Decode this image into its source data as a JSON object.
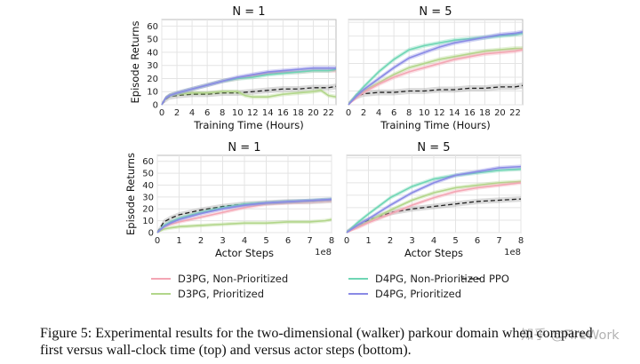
{
  "figure": {
    "caption_line1": "Figure 5: Experimental results for the two-dimensional (walker) parkour domain when compared",
    "caption_line2": "first versus wall-clock time (top) and versus actor steps (bottom).",
    "watermark": "知乎 @FireWork",
    "ylabel": "Episode Returns",
    "legend": [
      {
        "name": "D3PG, Non-Prioritized",
        "color": "#f4a6b4",
        "style": "solid"
      },
      {
        "name": "D4PG, Non-Prioritized",
        "color": "#6fd6b4",
        "style": "solid"
      },
      {
        "name": "PPO",
        "color": "#222222",
        "style": "dashed"
      },
      {
        "name": "D3PG, Prioritized",
        "color": "#b2d68a",
        "style": "solid"
      },
      {
        "name": "D4PG, Prioritized",
        "color": "#8a8ae6",
        "style": "solid"
      }
    ]
  },
  "chart_data": [
    {
      "type": "line",
      "title": "N = 1",
      "xlabel": "Training Time (Hours)",
      "ylabel": "Episode Returns",
      "xlim": [
        0,
        23
      ],
      "ylim": [
        0,
        65
      ],
      "xticks": [
        0,
        2,
        4,
        6,
        8,
        10,
        12,
        14,
        16,
        18,
        20,
        22
      ],
      "yticks": [
        0,
        10,
        20,
        30,
        40,
        50,
        60
      ],
      "x_exponent": "",
      "series": [
        {
          "name": "D3PG, Non-Prioritized",
          "x": [
            0,
            0.5,
            1,
            2,
            4,
            6,
            8,
            10,
            12,
            14,
            16,
            18,
            20,
            22,
            23
          ],
          "y": [
            0,
            5,
            7,
            9,
            12,
            15,
            18,
            20,
            22,
            24,
            25,
            25,
            26,
            26,
            26
          ]
        },
        {
          "name": "D3PG, Prioritized",
          "x": [
            0,
            0.5,
            1,
            2,
            4,
            6,
            8,
            10,
            11,
            12,
            14,
            16,
            18,
            20,
            21,
            22,
            23
          ],
          "y": [
            0,
            5,
            7,
            8,
            9,
            9,
            10,
            10,
            7,
            6,
            6,
            8,
            9,
            10,
            11,
            7,
            6
          ]
        },
        {
          "name": "D4PG, Non-Prioritized",
          "x": [
            0,
            0.5,
            1,
            2,
            4,
            6,
            8,
            10,
            12,
            14,
            16,
            18,
            20,
            22,
            23
          ],
          "y": [
            0,
            5,
            7,
            9,
            12,
            15,
            18,
            20,
            21,
            23,
            24,
            25,
            26,
            26,
            27
          ]
        },
        {
          "name": "D4PG, Prioritized",
          "x": [
            0,
            0.5,
            1,
            2,
            4,
            6,
            8,
            10,
            12,
            14,
            16,
            18,
            20,
            22,
            23
          ],
          "y": [
            0,
            5,
            7,
            9,
            12,
            15,
            18,
            21,
            23,
            25,
            26,
            27,
            28,
            28,
            28
          ]
        },
        {
          "name": "PPO",
          "x": [
            0,
            0.5,
            1,
            2,
            4,
            6,
            8,
            10,
            12,
            14,
            16,
            18,
            20,
            22,
            23
          ],
          "y": [
            0,
            4,
            6,
            7,
            8,
            8,
            9,
            9,
            10,
            11,
            12,
            12,
            13,
            13,
            14
          ]
        }
      ]
    },
    {
      "type": "line",
      "title": "N = 5",
      "xlabel": "Training Time (Hours)",
      "ylabel": "",
      "xlim": [
        0,
        23
      ],
      "ylim": [
        0,
        62
      ],
      "xticks": [
        0,
        2,
        4,
        6,
        8,
        10,
        12,
        14,
        16,
        18,
        20,
        22
      ],
      "yticks": [],
      "x_exponent": "",
      "series": [
        {
          "name": "D3PG, Non-Prioritized",
          "x": [
            0,
            1,
            2,
            4,
            6,
            8,
            10,
            12,
            14,
            16,
            18,
            20,
            22,
            23
          ],
          "y": [
            0,
            5,
            9,
            15,
            20,
            24,
            27,
            30,
            33,
            35,
            37,
            38,
            39,
            40
          ]
        },
        {
          "name": "D3PG, Prioritized",
          "x": [
            0,
            1,
            2,
            4,
            6,
            8,
            10,
            12,
            14,
            16,
            18,
            20,
            22,
            23
          ],
          "y": [
            0,
            6,
            10,
            16,
            22,
            27,
            30,
            33,
            35,
            37,
            39,
            40,
            41,
            41
          ]
        },
        {
          "name": "D4PG, Non-Prioritized",
          "x": [
            0,
            1,
            2,
            4,
            6,
            8,
            10,
            12,
            14,
            16,
            18,
            20,
            22,
            23
          ],
          "y": [
            0,
            7,
            13,
            24,
            33,
            40,
            43,
            45,
            47,
            48,
            49,
            50,
            51,
            52
          ]
        },
        {
          "name": "D4PG, Prioritized",
          "x": [
            0,
            1,
            2,
            4,
            6,
            8,
            10,
            12,
            14,
            16,
            18,
            20,
            22,
            23
          ],
          "y": [
            0,
            6,
            11,
            19,
            27,
            34,
            38,
            42,
            45,
            47,
            49,
            51,
            52,
            53
          ]
        },
        {
          "name": "PPO",
          "x": [
            0,
            1,
            2,
            4,
            6,
            8,
            10,
            12,
            14,
            16,
            18,
            20,
            22,
            23
          ],
          "y": [
            0,
            6,
            8,
            9,
            9,
            10,
            10,
            11,
            11,
            12,
            12,
            13,
            13,
            14
          ]
        }
      ]
    },
    {
      "type": "line",
      "title": "N = 1",
      "xlabel": "Actor Steps",
      "ylabel": "Episode Returns",
      "xlim": [
        0,
        8
      ],
      "ylim": [
        0,
        65
      ],
      "xticks": [
        0,
        1,
        2,
        3,
        4,
        5,
        6,
        7,
        8
      ],
      "yticks": [
        0,
        10,
        20,
        30,
        40,
        50,
        60
      ],
      "x_exponent": "1e8",
      "series": [
        {
          "name": "D3PG, Non-Prioritized",
          "x": [
            0,
            0.3,
            0.6,
            1,
            2,
            3,
            4,
            5,
            6,
            7,
            8
          ],
          "y": [
            0,
            5,
            7,
            9,
            13,
            17,
            21,
            24,
            25,
            26,
            27
          ]
        },
        {
          "name": "D3PG, Prioritized",
          "x": [
            0,
            0.3,
            0.6,
            1,
            2,
            3,
            4,
            5,
            6,
            7,
            7.7,
            8
          ],
          "y": [
            0,
            3,
            4,
            5,
            6,
            7,
            8,
            8,
            9,
            9,
            10,
            11
          ]
        },
        {
          "name": "D4PG, Non-Prioritized",
          "x": [
            0,
            0.3,
            0.6,
            1,
            2,
            3,
            4,
            5,
            6,
            7,
            8
          ],
          "y": [
            0,
            6,
            9,
            12,
            17,
            21,
            24,
            25,
            26,
            27,
            28
          ]
        },
        {
          "name": "D4PG, Prioritized",
          "x": [
            0,
            0.3,
            0.6,
            1,
            2,
            3,
            4,
            5,
            6,
            7,
            8
          ],
          "y": [
            0,
            5,
            8,
            11,
            16,
            20,
            23,
            25,
            26,
            27,
            28
          ]
        },
        {
          "name": "PPO",
          "x": [
            0,
            0.3,
            0.6,
            1,
            2,
            3,
            4,
            5,
            6,
            7,
            8
          ],
          "y": [
            0,
            9,
            12,
            15,
            19,
            22,
            24,
            25,
            26,
            26,
            27
          ]
        }
      ]
    },
    {
      "type": "line",
      "title": "N = 5",
      "xlabel": "Actor Steps",
      "ylabel": "",
      "xlim": [
        0,
        8
      ],
      "ylim": [
        0,
        62
      ],
      "xticks": [
        0,
        1,
        2,
        3,
        4,
        5,
        6,
        7,
        8
      ],
      "yticks": [],
      "x_exponent": "1e8",
      "series": [
        {
          "name": "D3PG, Non-Prioritized",
          "x": [
            0,
            0.5,
            1,
            2,
            3,
            4,
            5,
            6,
            7,
            8
          ],
          "y": [
            0,
            4,
            8,
            15,
            22,
            28,
            33,
            36,
            38,
            40
          ]
        },
        {
          "name": "D3PG, Prioritized",
          "x": [
            0,
            0.5,
            1,
            2,
            3,
            4,
            5,
            6,
            7,
            8
          ],
          "y": [
            0,
            5,
            9,
            18,
            26,
            32,
            36,
            38,
            40,
            41
          ]
        },
        {
          "name": "D4PG, Non-Prioritized",
          "x": [
            0,
            0.5,
            1,
            2,
            3,
            4,
            5,
            6,
            7,
            8
          ],
          "y": [
            0,
            8,
            15,
            28,
            37,
            43,
            46,
            48,
            50,
            51
          ]
        },
        {
          "name": "D4PG, Prioritized",
          "x": [
            0,
            0.5,
            1,
            2,
            3,
            4,
            5,
            6,
            7,
            8
          ],
          "y": [
            0,
            6,
            11,
            22,
            32,
            40,
            46,
            49,
            52,
            53
          ]
        },
        {
          "name": "PPO",
          "x": [
            0,
            0.5,
            1,
            2,
            3,
            4,
            5,
            6,
            7,
            8
          ],
          "y": [
            0,
            6,
            10,
            16,
            19,
            21,
            23,
            25,
            26,
            27
          ]
        }
      ]
    }
  ]
}
